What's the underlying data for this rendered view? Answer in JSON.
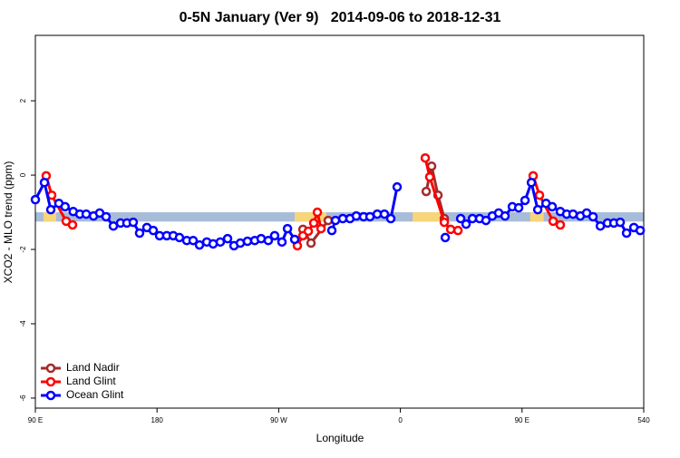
{
  "chart_data": {
    "type": "line",
    "title": "0-5N January (Ver 9)   2014-09-06 to 2018-12-31",
    "xlabel": "Longitude",
    "ylabel": "XCO2 - MLO trend (ppm)",
    "xlim": [
      90,
      540
    ],
    "ylim": [
      -6.27,
      3.76
    ],
    "xticks": [
      {
        "value": 90,
        "label": "90 E"
      },
      180,
      {
        "value": 270,
        "label": "90 W"
      },
      {
        "value": 360,
        "label": "0"
      },
      {
        "value": 450,
        "label": "90 E"
      },
      540
    ],
    "yticks": [
      -6,
      -4,
      -2,
      0,
      2
    ],
    "legend": "bottom-left",
    "band": {
      "range": [
        -1.25,
        -1.0
      ],
      "ocean_color": "#a7bcd8",
      "land_color": "#f7d57a",
      "land_segments": [
        [
          96,
          105.4
        ],
        [
          281.8,
          305.3
        ],
        [
          369,
          392.5
        ],
        [
          456,
          466
        ]
      ]
    },
    "series": [
      {
        "name": "Land Nadir",
        "color": "#a52a2a",
        "x": [
          287.9,
          293.9,
          306.6,
          null,
          379.1,
          383.1,
          387.8,
          392.5
        ],
        "values": [
          -1.46,
          -1.83,
          -1.22,
          null,
          -0.44,
          0.24,
          -0.54,
          -1.17
        ]
      },
      {
        "name": "Land Glint",
        "color": "#ff0000",
        "x": [
          98,
          102.1,
          112.8,
          117.5,
          null,
          283.8,
          287.9,
          291.9,
          295.9,
          298.6,
          301.3,
          null,
          378.4,
          381.7,
          392.5,
          397.2,
          402.6,
          null,
          458.2,
          462.9,
          473,
          478.3
        ],
        "values": [
          -0.02,
          -0.54,
          -1.24,
          -1.34,
          null,
          -1.9,
          -1.63,
          -1.51,
          -1.29,
          -1.0,
          -1.44,
          null,
          0.46,
          -0.05,
          -1.27,
          -1.46,
          -1.49,
          null,
          -0.02,
          -0.54,
          -1.24,
          -1.34
        ]
      },
      {
        "name": "Ocean Glint",
        "color": "#0000ff",
        "x": [
          90,
          96.7,
          101.4,
          107.4,
          112,
          118,
          122.9,
          127.6,
          133,
          137.6,
          142.3,
          147.7,
          153,
          157.7,
          162.4,
          167.1,
          172.5,
          177.2,
          181.9,
          187.2,
          192,
          196.6,
          202,
          206.7,
          211.4,
          216.8,
          221.5,
          226.8,
          232.2,
          236.9,
          241.6,
          246.9,
          252.3,
          257,
          262.3,
          267,
          272.4,
          276.5,
          281.8,
          null,
          309.3,
          312,
          317.4,
          322.7,
          327.4,
          332.8,
          337.5,
          342.9,
          348.2,
          352.9,
          357.6,
          null,
          393.2,
          null,
          404.6,
          408.6,
          413.3,
          418.6,
          423.3,
          428,
          432.7,
          437.4,
          442.8,
          447.5,
          452.2,
          456.9,
          461.6,
          467.7,
          472.3,
          478.3,
          483,
          487.7,
          493.1,
          497.8,
          502.5,
          507.9,
          513.2,
          517.9,
          522.6,
          527.3,
          532.7,
          537.4
        ],
        "values": [
          -0.66,
          -0.2,
          -0.93,
          -0.76,
          -0.85,
          -0.98,
          -1.05,
          -1.05,
          -1.1,
          -1.02,
          -1.12,
          -1.37,
          -1.29,
          -1.29,
          -1.27,
          -1.56,
          -1.41,
          -1.49,
          -1.63,
          -1.63,
          -1.63,
          -1.68,
          -1.76,
          -1.76,
          -1.88,
          -1.8,
          -1.85,
          -1.8,
          -1.71,
          -1.9,
          -1.83,
          -1.78,
          -1.76,
          -1.71,
          -1.76,
          -1.63,
          -1.8,
          -1.44,
          -1.73,
          null,
          -1.49,
          -1.22,
          -1.17,
          -1.17,
          -1.1,
          -1.12,
          -1.12,
          -1.05,
          -1.05,
          -1.17,
          -0.32,
          null,
          -1.68,
          null,
          -1.17,
          -1.32,
          -1.17,
          -1.17,
          -1.22,
          -1.1,
          -1.02,
          -1.1,
          -0.85,
          -0.88,
          -0.68,
          -0.2,
          -0.93,
          -0.76,
          -0.85,
          -0.98,
          -1.05,
          -1.05,
          -1.1,
          -1.02,
          -1.12,
          -1.37,
          -1.29,
          -1.29,
          -1.27,
          -1.56,
          -1.41,
          -1.49
        ]
      }
    ]
  }
}
